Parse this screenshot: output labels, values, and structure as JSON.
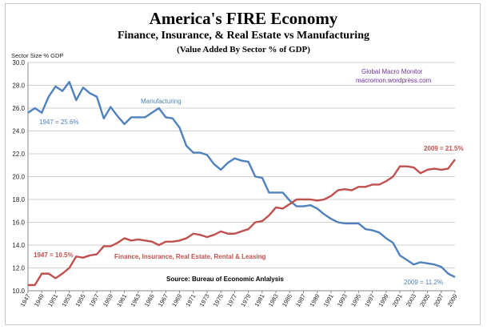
{
  "chart_data": {
    "type": "line",
    "title": "America's FIRE Economy",
    "subtitle": "Finance, Insurance, & Real Estate vs Manufacturing",
    "subtitle2": "(Value Added By Sector % of GDP)",
    "ylabel": "Sector Size % GDP",
    "xlabel": "",
    "ylim": [
      10.0,
      30.0
    ],
    "yticks": [
      "10.0",
      "12.0",
      "14.0",
      "16.0",
      "18.0",
      "20.0",
      "22.0",
      "24.0",
      "26.0",
      "28.0",
      "30.0"
    ],
    "xlim": [
      1947,
      2009
    ],
    "xticks": [
      "1947",
      "1949",
      "1951",
      "1953",
      "1955",
      "1957",
      "1959",
      "1961",
      "1963",
      "1965",
      "1967",
      "1969",
      "1971",
      "1973",
      "1975",
      "1977",
      "1979",
      "1981",
      "1983",
      "1985",
      "1987",
      "1989",
      "1991",
      "1993",
      "1995",
      "1997",
      "1999",
      "2001",
      "2003",
      "2005",
      "2007",
      "2009"
    ],
    "grid": true,
    "x": [
      1947,
      1948,
      1949,
      1950,
      1951,
      1952,
      1953,
      1954,
      1955,
      1956,
      1957,
      1958,
      1959,
      1960,
      1961,
      1962,
      1963,
      1964,
      1965,
      1966,
      1967,
      1968,
      1969,
      1970,
      1971,
      1972,
      1973,
      1974,
      1975,
      1976,
      1977,
      1978,
      1979,
      1980,
      1981,
      1982,
      1983,
      1984,
      1985,
      1986,
      1987,
      1988,
      1989,
      1990,
      1991,
      1992,
      1993,
      1994,
      1995,
      1996,
      1997,
      1998,
      1999,
      2000,
      2001,
      2002,
      2003,
      2004,
      2005,
      2006,
      2007,
      2008,
      2009
    ],
    "series": [
      {
        "name": "Manufacturing",
        "color": "#4f81bd",
        "values": [
          25.6,
          26.0,
          25.6,
          27.0,
          27.9,
          27.5,
          28.3,
          26.7,
          27.8,
          27.3,
          27.0,
          25.1,
          26.1,
          25.3,
          24.6,
          25.2,
          25.2,
          25.2,
          25.6,
          26.0,
          25.2,
          25.1,
          24.3,
          22.7,
          22.1,
          22.1,
          21.9,
          21.1,
          20.6,
          21.2,
          21.6,
          21.4,
          21.3,
          20.0,
          19.9,
          18.6,
          18.6,
          18.6,
          17.9,
          17.4,
          17.4,
          17.5,
          17.2,
          16.7,
          16.3,
          16.0,
          15.9,
          15.9,
          15.9,
          15.4,
          15.3,
          15.1,
          14.6,
          14.2,
          13.1,
          12.7,
          12.3,
          12.5,
          12.4,
          12.3,
          12.1,
          11.5,
          11.2
        ]
      },
      {
        "name": "Finance, Insurance, Real Estate, Rental  & Leasing",
        "color": "#c0504d",
        "values": [
          10.5,
          10.5,
          11.5,
          11.5,
          11.1,
          11.5,
          12.0,
          13.0,
          12.9,
          13.1,
          13.2,
          13.9,
          13.9,
          14.2,
          14.6,
          14.4,
          14.5,
          14.4,
          14.3,
          14.0,
          14.3,
          14.3,
          14.4,
          14.6,
          15.0,
          14.9,
          14.7,
          14.9,
          15.2,
          15.0,
          15.0,
          15.2,
          15.4,
          16.0,
          16.1,
          16.6,
          17.3,
          17.2,
          17.6,
          18.0,
          18.0,
          18.0,
          17.9,
          18.0,
          18.3,
          18.8,
          18.9,
          18.8,
          19.1,
          19.1,
          19.3,
          19.3,
          19.6,
          20.0,
          20.9,
          20.9,
          20.8,
          20.3,
          20.6,
          20.7,
          20.6,
          20.7,
          21.5
        ]
      }
    ],
    "annotations": {
      "manufacturing_label": "Manufacturing",
      "fire_label": "Finance, Insurance, Real Estate, Rental  & Leasing",
      "mfg_start": "1947 = 25.6%",
      "mfg_end": "2009 = 11.2%",
      "fire_start": "1947 = 10.5%",
      "fire_end": "2009 = 21.5%",
      "source": "Source:  Bureau of Economic Anlalysis",
      "credit_line1": "Global Macro Monitor",
      "credit_line2": "macromon.wordpress.com"
    }
  }
}
